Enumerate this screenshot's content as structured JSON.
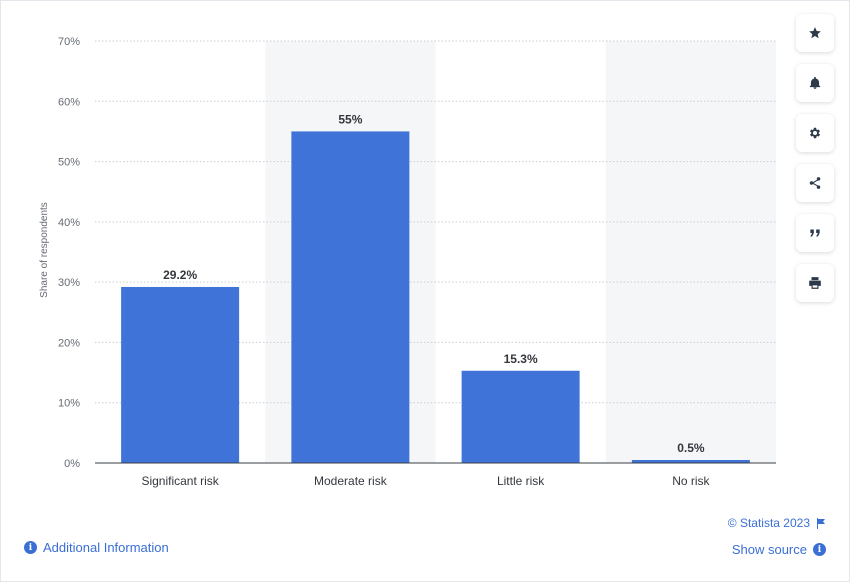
{
  "chart_data": {
    "type": "bar",
    "categories": [
      "Significant risk",
      "Moderate risk",
      "Little risk",
      "No risk"
    ],
    "values": [
      29.2,
      55,
      15.3,
      0.5
    ],
    "data_labels": [
      "29.2%",
      "55%",
      "15.3%",
      "0.5%"
    ],
    "ylabel": "Share of respondents",
    "ylim": [
      0,
      70
    ],
    "yticks": [
      0,
      10,
      20,
      30,
      40,
      50,
      60,
      70
    ],
    "ytick_labels": [
      "0%",
      "10%",
      "20%",
      "30%",
      "40%",
      "50%",
      "60%",
      "70%"
    ],
    "grid": true,
    "bar_color": "#3f73d8"
  },
  "sidebar": {
    "buttons": [
      {
        "name": "favorite-button",
        "icon": "star-icon"
      },
      {
        "name": "notification-button",
        "icon": "bell-icon"
      },
      {
        "name": "settings-button",
        "icon": "gear-icon"
      },
      {
        "name": "share-button",
        "icon": "share-icon"
      },
      {
        "name": "cite-button",
        "icon": "quote-icon"
      },
      {
        "name": "print-button",
        "icon": "printer-icon"
      }
    ]
  },
  "footer": {
    "additional_info": "Additional Information",
    "copyright": "© Statista 2023",
    "show_source": "Show source"
  },
  "colors": {
    "accent": "#3a6fd6",
    "bar": "#3f73d8",
    "band": "#f5f6f8"
  }
}
